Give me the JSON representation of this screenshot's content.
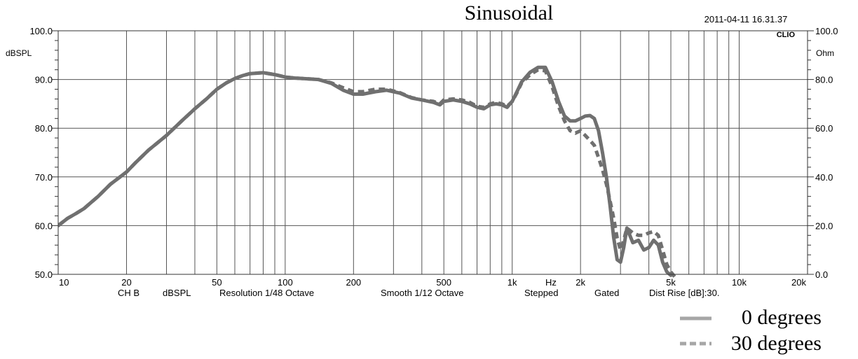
{
  "chart_data": {
    "type": "line",
    "title": "Sinusoidal",
    "timestamp": "2011-04-11 16.31.37",
    "brand": "CLIO",
    "xscale": "log",
    "xlim": [
      10,
      20000
    ],
    "ylim": [
      50,
      100
    ],
    "y2lim": [
      0,
      100
    ],
    "ylabel": "dBSPL",
    "y2label": "Ohm",
    "xunit_label": "Hz",
    "y_ticks": [
      "50.0",
      "60.0",
      "70.0",
      "80.0",
      "90.0",
      "100.0"
    ],
    "y_tick_values": [
      50,
      60,
      70,
      80,
      90,
      100
    ],
    "y2_ticks": [
      "0.0",
      "20.0",
      "40.0",
      "60.0",
      "80.0",
      "100.0"
    ],
    "y2_tick_values": [
      0,
      20,
      40,
      60,
      80,
      100
    ],
    "x_ticks": [
      "10",
      "20",
      "50",
      "100",
      "200",
      "500",
      "1k",
      "2k",
      "5k",
      "10k",
      "20k"
    ],
    "x_tick_values": [
      10,
      20,
      50,
      100,
      200,
      500,
      1000,
      2000,
      5000,
      10000,
      20000
    ],
    "footer": {
      "channel": "CH B",
      "unit": "dBSPL",
      "resolution": "Resolution 1/48 Octave",
      "smooth": "Smooth 1/12 Octave",
      "mode": "Stepped",
      "gating": "Gated",
      "dist_rise": "Dist Rise [dB]:30."
    },
    "legend_position": "bottom-right",
    "series": [
      {
        "name": "0 degrees",
        "style": "solid",
        "color": "#707070",
        "legend_color": "#a6a6a6",
        "x": [
          10,
          11,
          12,
          13,
          15,
          17,
          20,
          22,
          25,
          30,
          35,
          40,
          45,
          50,
          55,
          60,
          65,
          70,
          80,
          90,
          100,
          110,
          120,
          140,
          160,
          180,
          200,
          220,
          250,
          280,
          320,
          360,
          400,
          450,
          480,
          500,
          550,
          600,
          650,
          700,
          750,
          800,
          850,
          900,
          950,
          1000,
          1050,
          1100,
          1200,
          1300,
          1400,
          1500,
          1600,
          1700,
          1800,
          1900,
          2000,
          2100,
          2200,
          2300,
          2400,
          2500,
          2600,
          2700,
          2800,
          2900,
          3000,
          3100,
          3200,
          3400,
          3600,
          3800,
          4000,
          4200,
          4400,
          4600,
          4800,
          5000
        ],
        "values": [
          60.0,
          61.5,
          62.5,
          63.5,
          66.0,
          68.5,
          71.0,
          73.0,
          75.5,
          78.5,
          81.5,
          84.0,
          86.0,
          88.0,
          89.3,
          90.2,
          90.8,
          91.2,
          91.4,
          91.0,
          90.5,
          90.3,
          90.2,
          90.0,
          89.2,
          87.8,
          87.0,
          87.0,
          87.5,
          87.8,
          87.2,
          86.2,
          85.8,
          85.3,
          84.8,
          85.5,
          85.8,
          85.5,
          85.0,
          84.3,
          84.0,
          84.8,
          85.0,
          84.8,
          84.3,
          85.5,
          87.5,
          89.5,
          91.5,
          92.5,
          92.5,
          89.5,
          85.5,
          82.5,
          81.5,
          81.5,
          82.0,
          82.5,
          82.6,
          82.0,
          79.5,
          75.0,
          70.0,
          64.0,
          57.5,
          53.0,
          52.5,
          55.5,
          59.5,
          56.5,
          57.0,
          55.0,
          55.5,
          57.0,
          56.0,
          52.5,
          50.5,
          49.8
        ]
      },
      {
        "name": "30 degrees",
        "style": "dashed",
        "color": "#707070",
        "legend_color": "#a6a6a6",
        "x": [
          10,
          11,
          12,
          13,
          15,
          17,
          20,
          22,
          25,
          30,
          35,
          40,
          45,
          50,
          55,
          60,
          65,
          70,
          80,
          90,
          100,
          110,
          120,
          140,
          160,
          180,
          200,
          220,
          250,
          280,
          320,
          360,
          400,
          450,
          480,
          500,
          550,
          600,
          650,
          700,
          750,
          800,
          850,
          900,
          950,
          1000,
          1050,
          1100,
          1200,
          1300,
          1400,
          1500,
          1600,
          1700,
          1800,
          1900,
          2000,
          2100,
          2200,
          2300,
          2400,
          2500,
          2600,
          2700,
          2800,
          2900,
          3000,
          3100,
          3200,
          3400,
          3600,
          3800,
          4000,
          4200,
          4400,
          4600,
          4800,
          5000,
          5200
        ],
        "values": [
          60.0,
          61.5,
          62.5,
          63.5,
          66.0,
          68.5,
          71.0,
          73.0,
          75.5,
          78.5,
          81.5,
          84.0,
          86.0,
          88.0,
          89.3,
          90.2,
          90.8,
          91.2,
          91.4,
          91.0,
          90.5,
          90.3,
          90.2,
          90.0,
          89.3,
          88.3,
          87.5,
          87.5,
          88.0,
          88.0,
          87.3,
          86.3,
          85.8,
          85.5,
          85.0,
          85.8,
          86.0,
          85.8,
          85.3,
          84.5,
          84.3,
          85.0,
          85.3,
          85.0,
          84.5,
          85.5,
          87.3,
          89.3,
          91.0,
          92.0,
          91.8,
          88.5,
          84.5,
          81.5,
          79.5,
          79.0,
          79.5,
          78.5,
          77.5,
          76.5,
          74.0,
          71.5,
          68.5,
          65.0,
          61.5,
          57.5,
          55.0,
          57.0,
          59.5,
          58.5,
          58.0,
          58.0,
          58.5,
          58.8,
          58.0,
          55.0,
          52.0,
          50.5,
          49.5
        ]
      }
    ]
  }
}
